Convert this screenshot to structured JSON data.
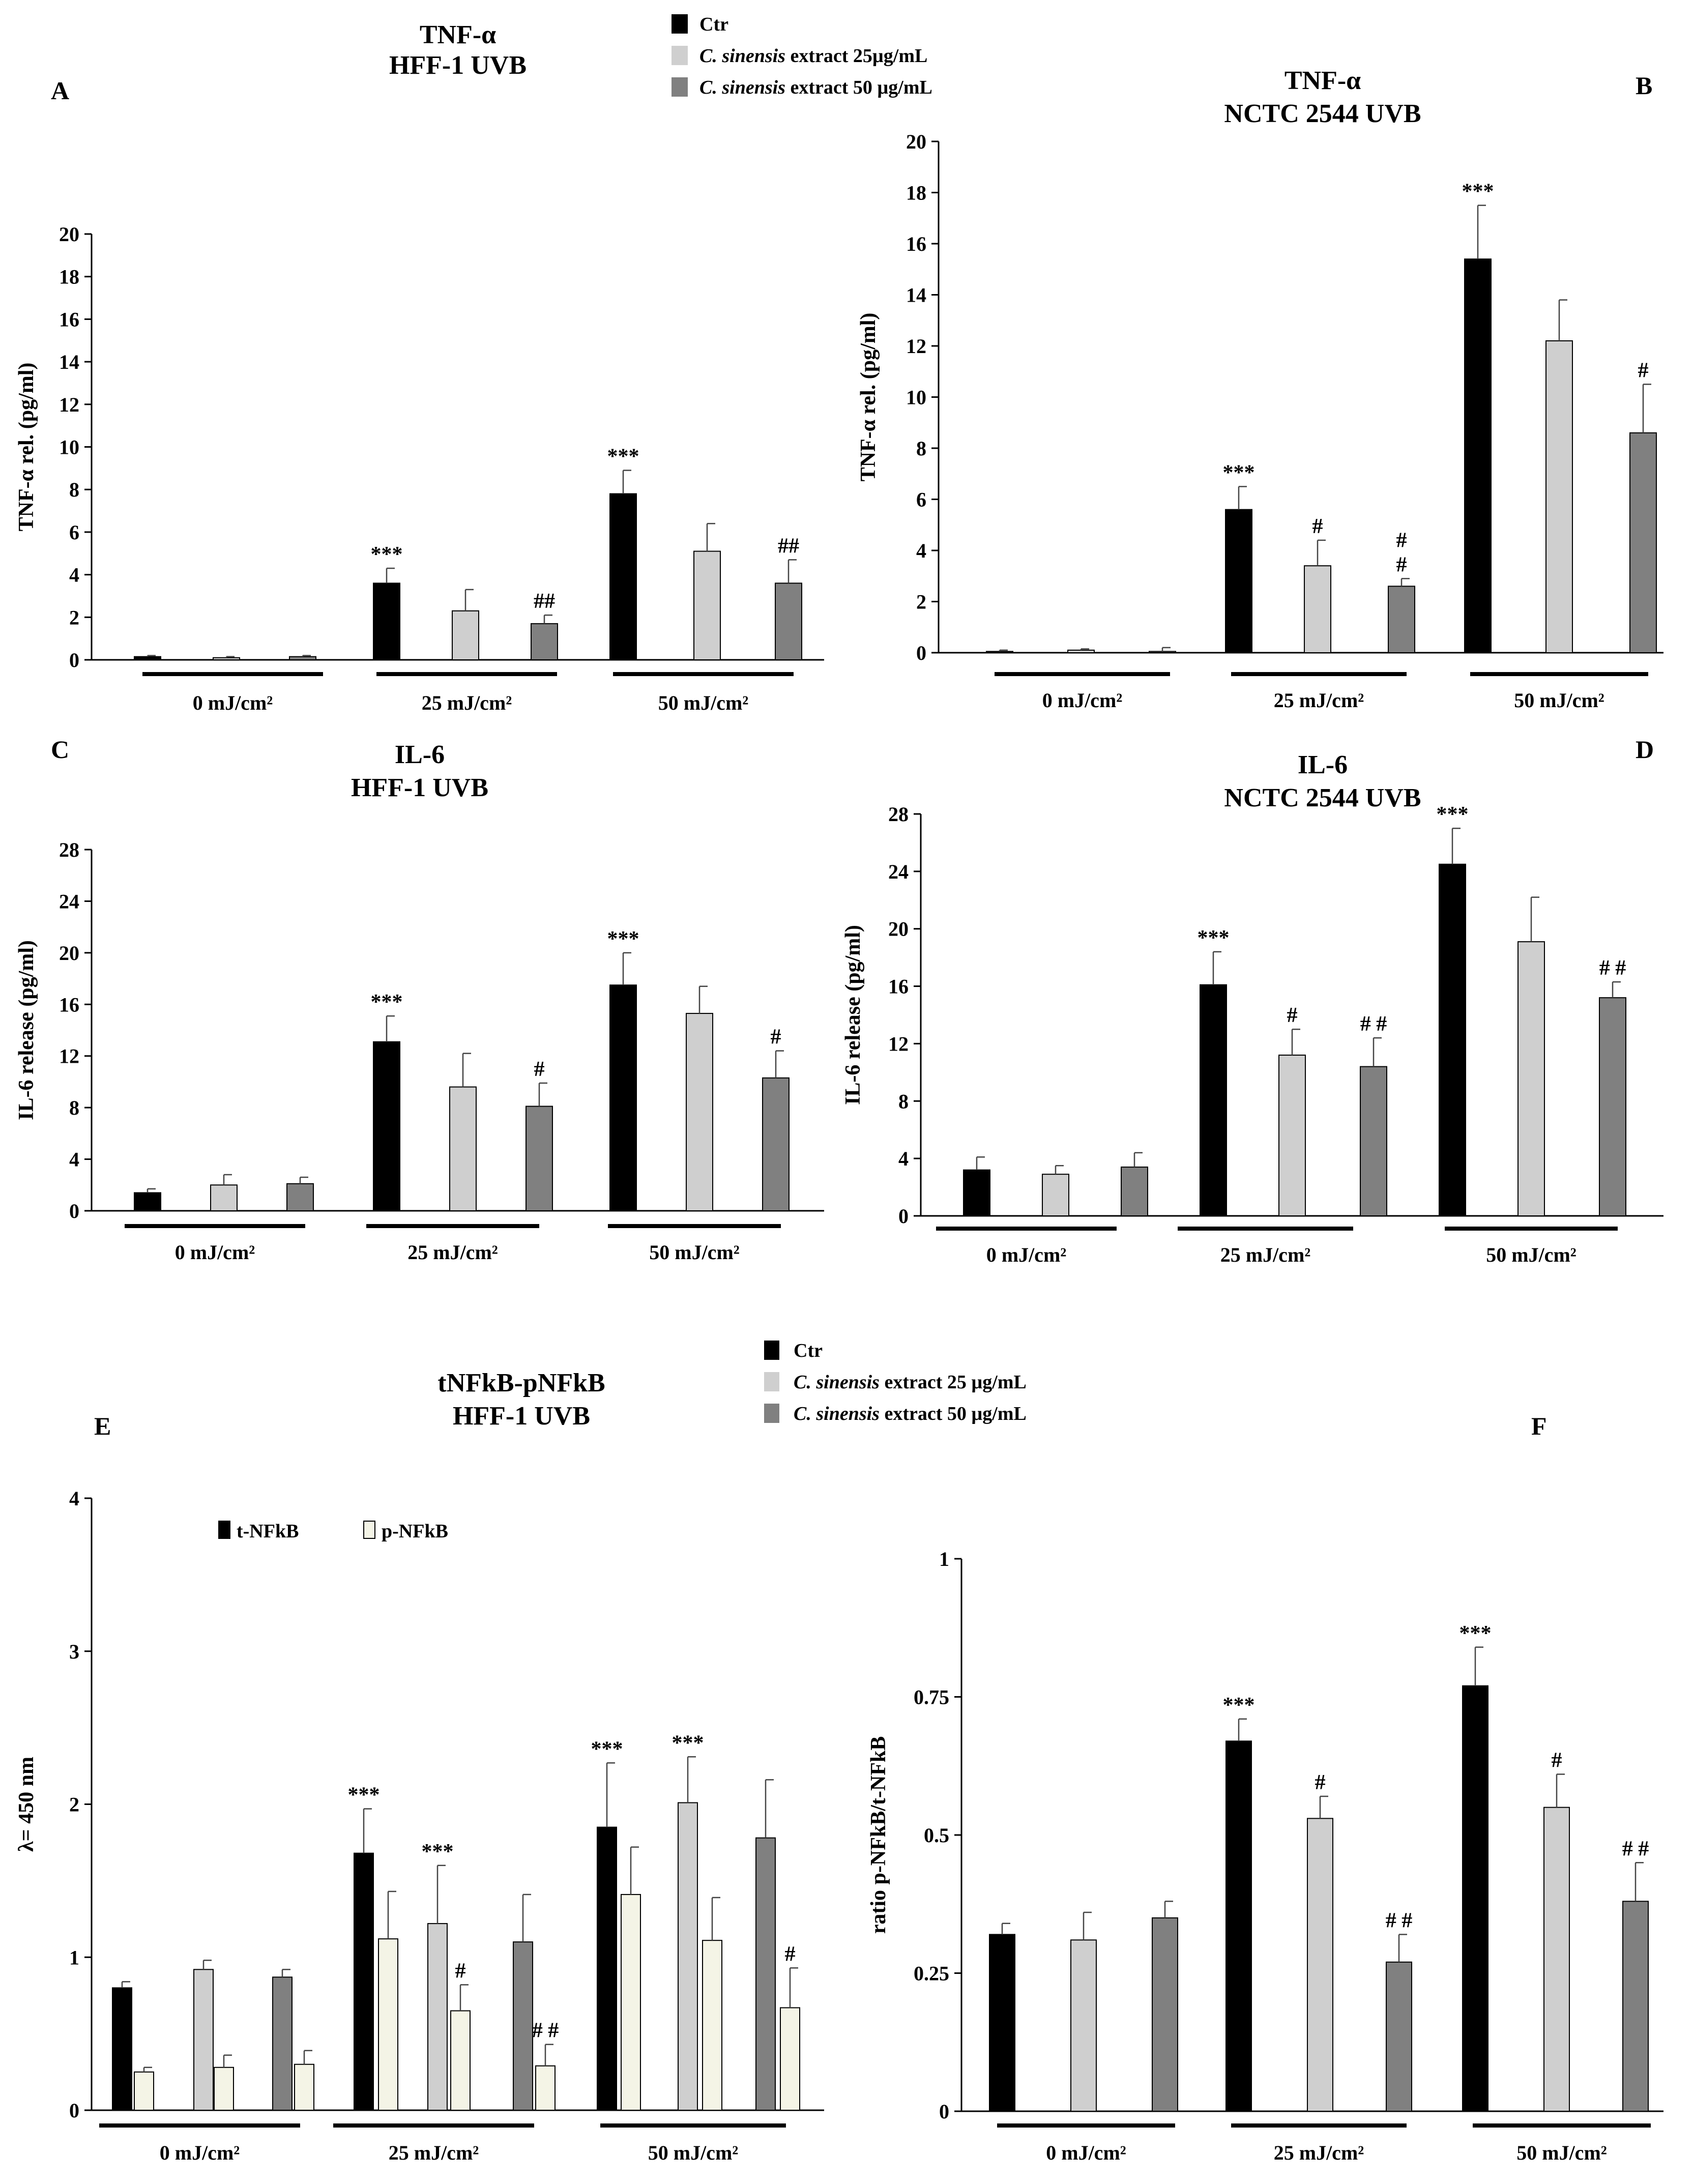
{
  "legend_top": {
    "items": [
      {
        "prefix": "",
        "italic": "",
        "text": "Ctr",
        "color": "#000000"
      },
      {
        "prefix": "",
        "italic": "C. sinensis",
        "text": " extract 25µg/mL",
        "color": "#cfcfcf"
      },
      {
        "prefix": "",
        "italic": "C. sinensis",
        "text": " extract  50 µg/mL",
        "color": "#808080"
      }
    ]
  },
  "legend_mid": {
    "items": [
      {
        "italic": "",
        "text": "Ctr",
        "color": "#000000"
      },
      {
        "italic": "C. sinensis",
        "text": " extract 25 µg/mL",
        "color": "#cfcfcf"
      },
      {
        "italic": "C. sinensis",
        "text": " extract 50 µg/mL",
        "color": "#808080"
      }
    ]
  },
  "chart_data": [
    {
      "id": "A",
      "type": "bar",
      "letter": "A",
      "title": [
        "TNF-α",
        "HFF-1 UVB"
      ],
      "ylabel": "TNF-α rel. (pg/ml)",
      "ylim": [
        0,
        20
      ],
      "yticks": [
        0,
        2,
        4,
        6,
        8,
        10,
        12,
        14,
        16,
        18,
        20
      ],
      "groups": [
        "0 mJ/cm²",
        "25 mJ/cm²",
        "50 mJ/cm²"
      ],
      "series": [
        {
          "name": "Ctr",
          "color": "#000000",
          "values": [
            0.15,
            3.6,
            7.8
          ],
          "errors": [
            0.05,
            0.7,
            1.1
          ],
          "labels": [
            "",
            "***",
            "***"
          ]
        },
        {
          "name": "C. sinensis extract 25µg/mL",
          "color": "#cfcfcf",
          "values": [
            0.1,
            2.3,
            5.1
          ],
          "errors": [
            0.05,
            1.0,
            1.3
          ],
          "labels": [
            "",
            "",
            ""
          ]
        },
        {
          "name": "C. sinensis extract 50 µg/mL",
          "color": "#808080",
          "values": [
            0.15,
            1.7,
            3.6
          ],
          "errors": [
            0.05,
            0.4,
            1.1
          ],
          "labels": [
            "",
            "##",
            "##"
          ]
        }
      ]
    },
    {
      "id": "B",
      "type": "bar",
      "letter": "B",
      "title": [
        "TNF-α",
        "NCTC 2544 UVB"
      ],
      "ylabel": "TNF-α rel. (pg/ml)",
      "ylim": [
        0,
        20
      ],
      "yticks": [
        0,
        2,
        4,
        6,
        8,
        10,
        12,
        14,
        16,
        18,
        20
      ],
      "groups": [
        "0 mJ/cm²",
        "25 mJ/cm²",
        "50 mJ/cm²"
      ],
      "series": [
        {
          "name": "Ctr",
          "color": "#000000",
          "values": [
            0.05,
            5.6,
            15.4
          ],
          "errors": [
            0.05,
            0.9,
            2.1
          ],
          "labels": [
            "",
            "***",
            "***"
          ]
        },
        {
          "name": "C. sinensis extract 25µg/mL",
          "color": "#cfcfcf",
          "values": [
            0.1,
            3.4,
            12.2
          ],
          "errors": [
            0.05,
            1.0,
            1.6
          ],
          "labels": [
            "",
            "#",
            ""
          ]
        },
        {
          "name": "C. sinensis extract 50 µg/mL",
          "color": "#808080",
          "values": [
            0.05,
            2.6,
            8.6
          ],
          "errors": [
            0.15,
            0.3,
            1.9
          ],
          "labels": [
            "",
            "#\n#",
            "#"
          ]
        }
      ]
    },
    {
      "id": "C",
      "type": "bar",
      "letter": "C",
      "title": [
        "IL-6",
        "HFF-1 UVB"
      ],
      "ylabel": "IL-6 release (pg/ml)",
      "ylim": [
        0,
        28
      ],
      "yticks": [
        0,
        4,
        8,
        12,
        16,
        20,
        24,
        28
      ],
      "groups": [
        "0 mJ/cm²",
        "25 mJ/cm²",
        "50 mJ/cm²"
      ],
      "series": [
        {
          "name": "Ctr",
          "color": "#000000",
          "values": [
            1.4,
            13.1,
            17.5
          ],
          "errors": [
            0.3,
            2.0,
            2.5
          ],
          "labels": [
            "",
            "***",
            "***"
          ]
        },
        {
          "name": "C. sinensis extract 25µg/mL",
          "color": "#cfcfcf",
          "values": [
            2.0,
            9.6,
            15.3
          ],
          "errors": [
            0.8,
            2.6,
            2.1
          ],
          "labels": [
            "",
            "",
            ""
          ]
        },
        {
          "name": "C. sinensis extract 50 µg/mL",
          "color": "#808080",
          "values": [
            2.1,
            8.1,
            10.3
          ],
          "errors": [
            0.5,
            1.8,
            2.1
          ],
          "labels": [
            "",
            "#",
            "#"
          ]
        }
      ]
    },
    {
      "id": "D",
      "type": "bar",
      "letter": "D",
      "title": [
        "IL-6",
        "NCTC 2544 UVB"
      ],
      "ylabel": "IL-6 release (pg/ml)",
      "ylim": [
        0,
        28
      ],
      "yticks": [
        0,
        4,
        8,
        12,
        16,
        20,
        24,
        28
      ],
      "groups": [
        "0 mJ/cm²",
        "25 mJ/cm²",
        "50 mJ/cm²"
      ],
      "series": [
        {
          "name": "Ctr",
          "color": "#000000",
          "values": [
            3.2,
            16.1,
            24.5
          ],
          "errors": [
            0.9,
            2.3,
            2.5
          ],
          "labels": [
            "",
            "***",
            "***"
          ]
        },
        {
          "name": "C. sinensis extract 25µg/mL",
          "color": "#cfcfcf",
          "values": [
            2.9,
            11.2,
            19.1
          ],
          "errors": [
            0.6,
            1.8,
            3.1
          ],
          "labels": [
            "",
            "#",
            ""
          ]
        },
        {
          "name": "C. sinensis extract 50 µg/mL",
          "color": "#808080",
          "values": [
            3.4,
            10.4,
            15.2
          ],
          "errors": [
            1.0,
            2.0,
            1.1
          ],
          "labels": [
            "",
            "# #",
            "# #"
          ]
        }
      ]
    },
    {
      "id": "E",
      "type": "bar",
      "letter": "E",
      "title": [
        "tNFkB-pNFkB",
        "HFF-1 UVB"
      ],
      "ylabel": "λ= 450 nm",
      "ylim": [
        0,
        4
      ],
      "yticks": [
        0,
        1,
        2,
        3,
        4
      ],
      "groups": [
        "0 mJ/cm²",
        "25 mJ/cm²",
        "50 mJ/cm²"
      ],
      "inner_legend": [
        {
          "text": "t-NFkB",
          "color": "#000000"
        },
        {
          "text": "p-NFkB",
          "color": "#f4f4e6"
        }
      ],
      "series": [
        {
          "name": "Ctr t-NFkB",
          "color": "#000000",
          "values": [
            0.8,
            1.68,
            1.85
          ],
          "errors": [
            0.04,
            0.29,
            0.42
          ],
          "labels": [
            "",
            "***",
            "***"
          ]
        },
        {
          "name": "Ctr p-NFkB",
          "color": "#f4f4e6",
          "values": [
            0.25,
            1.12,
            1.41
          ],
          "errors": [
            0.03,
            0.31,
            0.31
          ],
          "labels": [
            "",
            "",
            ""
          ]
        },
        {
          "name": "25 µg/mL t-NFkB",
          "color": "#cfcfcf",
          "values": [
            0.92,
            1.22,
            2.01
          ],
          "errors": [
            0.06,
            0.38,
            0.3
          ],
          "labels": [
            "",
            "***",
            "***"
          ]
        },
        {
          "name": "25 µg/mL p-NFkB",
          "color": "#f4f4e6",
          "values": [
            0.28,
            0.65,
            1.11
          ],
          "errors": [
            0.08,
            0.17,
            0.28
          ],
          "labels": [
            "",
            "#",
            ""
          ]
        },
        {
          "name": "50 µg/mL t-NFkB",
          "color": "#808080",
          "values": [
            0.87,
            1.1,
            1.78
          ],
          "errors": [
            0.05,
            0.31,
            0.38
          ],
          "labels": [
            "",
            "",
            ""
          ]
        },
        {
          "name": "50 µg/mL p-NFkB",
          "color": "#f4f4e6",
          "values": [
            0.3,
            0.29,
            0.67
          ],
          "errors": [
            0.09,
            0.14,
            0.26
          ],
          "labels": [
            "",
            "# #",
            "#"
          ]
        }
      ]
    },
    {
      "id": "F",
      "type": "bar",
      "letter": "F",
      "title": [
        "",
        ""
      ],
      "ylabel": "ratio p-NFkB/t-NFkB",
      "ylim": [
        0,
        1
      ],
      "yticks": [
        0,
        0.25,
        0.5,
        0.75,
        1
      ],
      "groups": [
        "0 mJ/cm²",
        "25 mJ/cm²",
        "50 mJ/cm²"
      ],
      "series": [
        {
          "name": "Ctr",
          "color": "#000000",
          "values": [
            0.32,
            0.67,
            0.77
          ],
          "errors": [
            0.02,
            0.04,
            0.07
          ],
          "labels": [
            "",
            "***",
            "***"
          ]
        },
        {
          "name": "C. sinensis extract 25 µg/mL",
          "color": "#cfcfcf",
          "values": [
            0.31,
            0.53,
            0.55
          ],
          "errors": [
            0.05,
            0.04,
            0.06
          ],
          "labels": [
            "",
            "#",
            "#"
          ]
        },
        {
          "name": "C. sinensis extract 50 µg/mL",
          "color": "#808080",
          "values": [
            0.35,
            0.27,
            0.38
          ],
          "errors": [
            0.03,
            0.05,
            0.07
          ],
          "labels": [
            "",
            "# #",
            "# #"
          ]
        }
      ]
    }
  ]
}
